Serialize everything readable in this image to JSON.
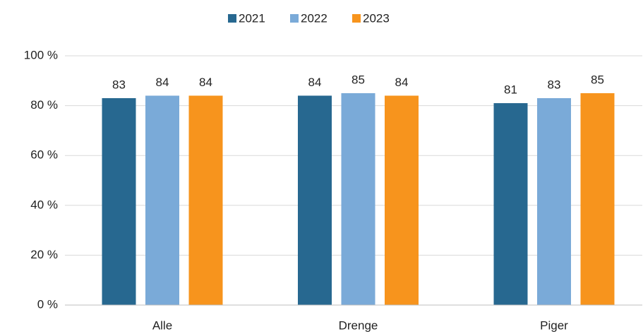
{
  "chart_data": {
    "type": "bar",
    "categories": [
      "Alle",
      "Drenge",
      "Piger"
    ],
    "series": [
      {
        "name": "2021",
        "color": "#276890",
        "values": [
          83,
          84,
          81
        ]
      },
      {
        "name": "2022",
        "color": "#7aaad8",
        "values": [
          84,
          85,
          83
        ]
      },
      {
        "name": "2023",
        "color": "#f7941d",
        "values": [
          84,
          84,
          85
        ]
      }
    ],
    "ylim": [
      0,
      100
    ],
    "yticks": [
      {
        "value": 0,
        "label": "0 %"
      },
      {
        "value": 20,
        "label": "20 %"
      },
      {
        "value": 40,
        "label": "40 %"
      },
      {
        "value": 60,
        "label": "60 %"
      },
      {
        "value": 80,
        "label": "80 %"
      },
      {
        "value": 100,
        "label": "100 %"
      }
    ],
    "grid": true,
    "legend": "top"
  }
}
